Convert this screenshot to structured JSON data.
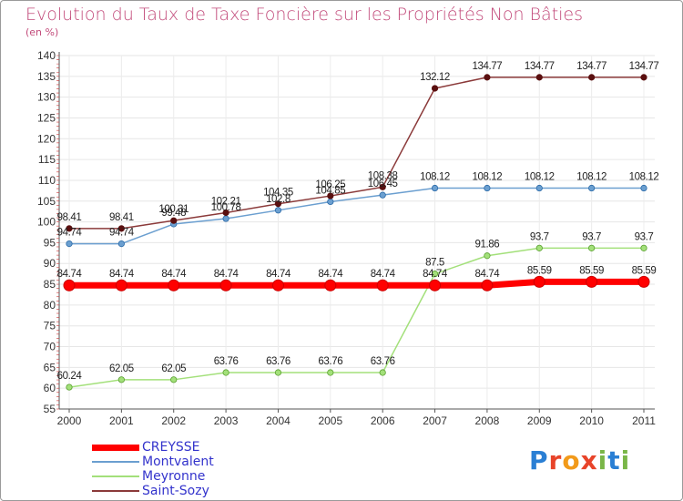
{
  "chart_data": {
    "type": "line",
    "title": "Evolution du Taux de Taxe Foncière sur les Propriétés Non Bâties",
    "unit_label": "(en %)",
    "xlabel": "",
    "ylabel": "",
    "ylim": [
      55,
      140
    ],
    "ytick_step": 5,
    "categories": [
      "2000",
      "2001",
      "2002",
      "2003",
      "2004",
      "2005",
      "2006",
      "2007",
      "2008",
      "2009",
      "2010",
      "2011"
    ],
    "series": [
      {
        "name": "CREYSSE",
        "color": "#ff0000",
        "values": [
          84.74,
          84.74,
          84.74,
          84.74,
          84.74,
          84.74,
          84.74,
          84.74,
          84.74,
          85.59,
          85.59,
          85.59
        ],
        "labels": [
          "84.74",
          "84.74",
          "84.74",
          "84.74",
          "84.74",
          "84.74",
          "84.74",
          "84.74",
          "84.74",
          "85.59",
          "85.59",
          "85.59"
        ]
      },
      {
        "name": "Montvalent",
        "color": "#6b9fd0",
        "values": [
          94.74,
          94.74,
          99.48,
          100.78,
          102.8,
          104.85,
          106.45,
          108.12,
          108.12,
          108.12,
          108.12,
          108.12
        ],
        "labels": [
          "94.74",
          "94.74",
          "99.48",
          "100.78",
          "102.8",
          "104.85",
          "106.45",
          "108.12",
          "108.12",
          "108.12",
          "108.12",
          "108.12"
        ]
      },
      {
        "name": "Meyronne",
        "color": "#a3e07a",
        "values": [
          60.24,
          62.05,
          62.05,
          63.76,
          63.76,
          63.76,
          63.76,
          87.5,
          91.86,
          93.7,
          93.7,
          93.7
        ],
        "labels": [
          "60.24",
          "62.05",
          "62.05",
          "63.76",
          "63.76",
          "63.76",
          "63.76",
          "87.5",
          "91.86",
          "93.7",
          "93.7",
          "93.7"
        ]
      },
      {
        "name": "Saint-Sozy",
        "color": "#8b3a3a",
        "values": [
          98.41,
          98.41,
          100.31,
          102.21,
          104.35,
          106.25,
          108.38,
          132.12,
          134.77,
          134.77,
          134.77,
          134.77
        ],
        "labels": [
          "98.41",
          "98.41",
          "100.31",
          "102.21",
          "104.35",
          "106.25",
          "108.38",
          "132.12",
          "134.77",
          "134.77",
          "134.77",
          "134.77"
        ]
      }
    ],
    "legend": "bottom-left"
  },
  "logo": {
    "text": "Proxiti",
    "letters": [
      "P",
      "r",
      "o",
      "x",
      "i",
      "t",
      "i"
    ],
    "colors": [
      "#2a7fd4",
      "#e8442a",
      "#f29a1a",
      "#e8442a",
      "#7ab648",
      "#2a7fd4",
      "#7ab648"
    ]
  }
}
